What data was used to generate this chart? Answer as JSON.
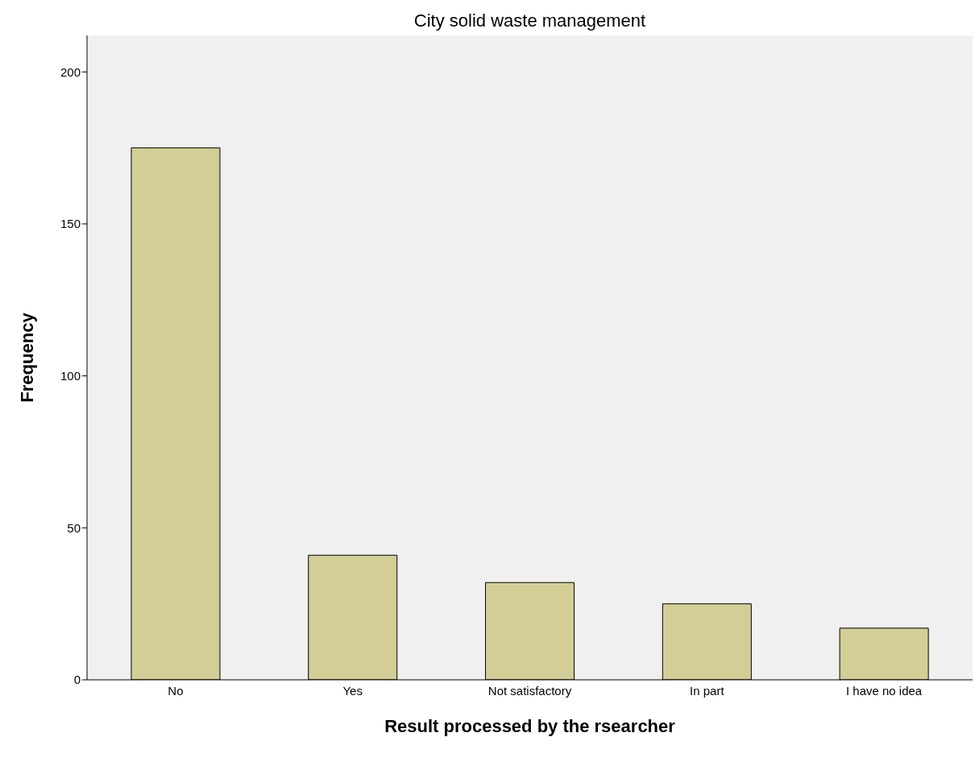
{
  "chart_data": {
    "type": "bar",
    "title": "City solid waste management",
    "xlabel": "Result processed by the rsearcher",
    "ylabel": "Frequency",
    "categories": [
      "No",
      "Yes",
      "Not satisfactory",
      "In part",
      "I have no idea"
    ],
    "values": [
      175,
      41,
      32,
      25,
      17
    ],
    "color": "#d3cd96",
    "ylim": [
      0,
      212
    ],
    "yticks": [
      0,
      50,
      100,
      150,
      200
    ],
    "grid": false,
    "legend": false
  }
}
